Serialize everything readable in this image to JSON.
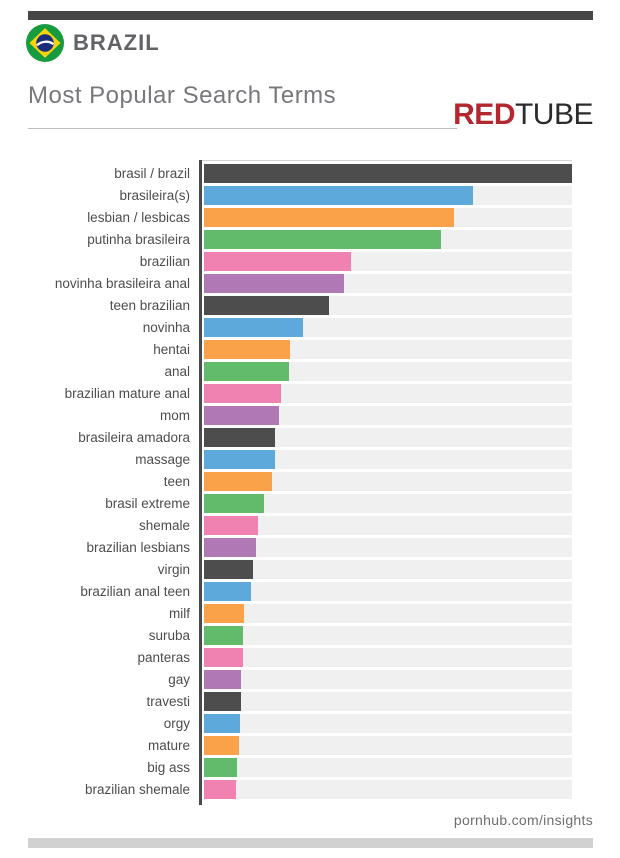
{
  "header": {
    "country": "BRAZIL",
    "title": "Most Popular Search Terms",
    "logo_red": "RED",
    "logo_tube": "TUBE"
  },
  "footer": {
    "url": "pornhub.com/insights"
  },
  "colors": {
    "accent_bar": "#464646",
    "axis": "#4a4a4a",
    "track": "#f0f0f0",
    "label_text": "#4d4d4d",
    "title_text": "#77787b",
    "brand_text": "#626366",
    "logo_red": "#b2282e",
    "logo_dark": "#2b2b2b",
    "footer_bar": "#d1d1d1",
    "flag_green": "#169b3e",
    "flag_yellow": "#f6d40e",
    "flag_blue": "#1b2e7b"
  },
  "chart_data": {
    "type": "bar",
    "orientation": "horizontal",
    "title": "Most Popular Search Terms",
    "value_axis_note": "no numeric axis shown; values read as % of longest bar",
    "xlim": [
      0,
      100
    ],
    "grid": false,
    "legend": false,
    "categories": [
      "brasil / brazil",
      "brasileira(s)",
      "lesbian / lesbicas",
      "putinha brasileira",
      "brazilian",
      "novinha brasileira anal",
      "teen brazilian",
      "novinha",
      "hentai",
      "anal",
      "brazilian mature anal",
      "mom",
      "brasileira amadora",
      "massage",
      "teen",
      "brasil extreme",
      "shemale",
      "brazilian lesbians",
      "virgin",
      "brazilian anal teen",
      "milf",
      "suruba",
      "panteras",
      "gay",
      "travesti",
      "orgy",
      "mature",
      "big ass",
      "brazilian shemale"
    ],
    "values_pct_of_max": [
      100,
      73,
      68,
      64.5,
      40,
      38,
      34,
      27,
      23.5,
      23,
      21,
      20.5,
      19.2,
      19.2,
      18.6,
      16.4,
      14.6,
      14,
      13.4,
      12.9,
      10.8,
      10.7,
      10.6,
      10,
      10,
      9.8,
      9.4,
      8.9,
      8.8
    ],
    "palette": [
      "#4d4d4d",
      "#5ea9dc",
      "#f9a24a",
      "#61bb6b",
      "#ef82b1",
      "#b078b4"
    ]
  }
}
